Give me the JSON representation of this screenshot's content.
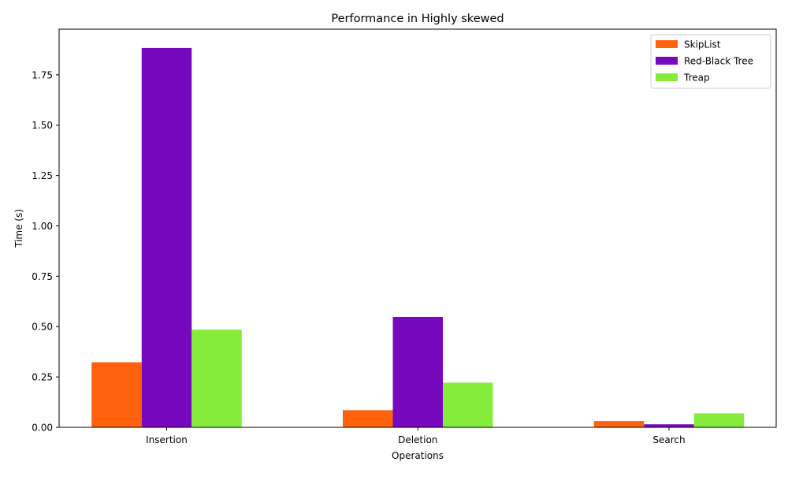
{
  "chart_data": {
    "type": "bar",
    "title": "Performance in Highly skewed",
    "xlabel": "Operations",
    "ylabel": "Time (s)",
    "categories": [
      "Insertion",
      "Deletion",
      "Search"
    ],
    "series": [
      {
        "name": "SkipList",
        "color": "#ff620d",
        "values": [
          0.323,
          0.085,
          0.031
        ]
      },
      {
        "name": "Red-Black Tree",
        "color": "#7608bd",
        "values": [
          1.883,
          0.548,
          0.015
        ]
      },
      {
        "name": "Treap",
        "color": "#85ec3b",
        "values": [
          0.485,
          0.222,
          0.069
        ]
      }
    ],
    "ylim": [
      0,
      1.9765
    ],
    "yticks": [
      "0.00",
      "0.25",
      "0.50",
      "0.75",
      "1.00",
      "1.25",
      "1.50",
      "1.75"
    ],
    "legend_position": "top-right",
    "grid": false
  }
}
